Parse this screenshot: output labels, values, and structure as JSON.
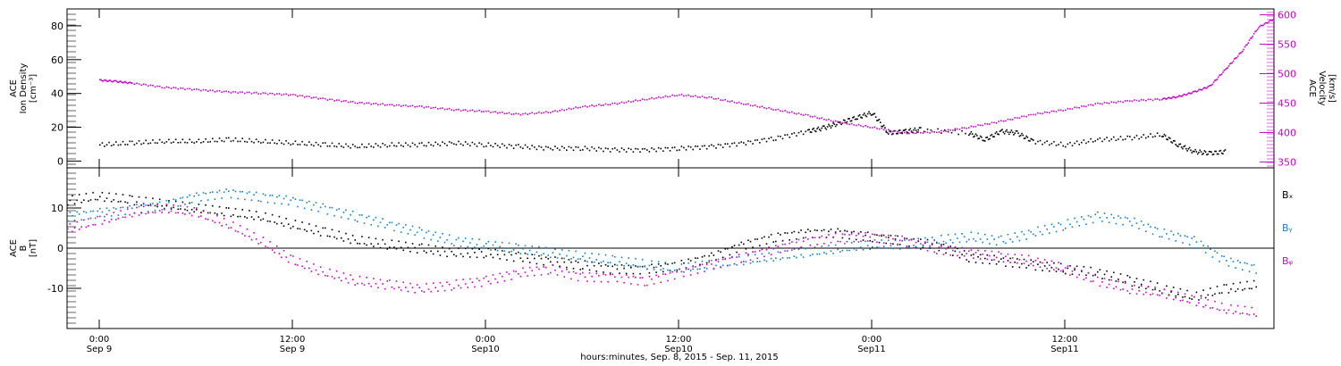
{
  "footer_label": "hours:minutes, Sep. 8, 2015 - Sep. 11, 2015",
  "colors": {
    "black": "#000000",
    "magenta": "#cc00cc",
    "blue": "#0a7fd8",
    "axis_right": "#cc00cc"
  },
  "chart_data": [
    {
      "type": "scatter",
      "ylabel": "ACE\nIon Density\n[cm⁻³]",
      "ylabel_right": "ACE\nVelocity\n[km/s]",
      "ylim": [
        -4,
        90
      ],
      "ylim_right": [
        340,
        610
      ],
      "yticks": [
        0,
        20,
        40,
        60,
        80
      ],
      "yticks_right": [
        350,
        400,
        450,
        500,
        550,
        600
      ],
      "x_hours": [
        -2,
        73
      ],
      "series": [
        {
          "name": "",
          "axis": "left",
          "color": "black",
          "points": [
            [
              0,
              10
            ],
            [
              2,
              11
            ],
            [
              4,
              12
            ],
            [
              6,
              12
            ],
            [
              8,
              13
            ],
            [
              10,
              12
            ],
            [
              12,
              11
            ],
            [
              14,
              10
            ],
            [
              16,
              9
            ],
            [
              18,
              10
            ],
            [
              20,
              10
            ],
            [
              22,
              11
            ],
            [
              24,
              10
            ],
            [
              26,
              9
            ],
            [
              28,
              8
            ],
            [
              30,
              8
            ],
            [
              32,
              7
            ],
            [
              34,
              7
            ],
            [
              36,
              8
            ],
            [
              38,
              9
            ],
            [
              40,
              11
            ],
            [
              42,
              14
            ],
            [
              44,
              18
            ],
            [
              45,
              20
            ],
            [
              46,
              23
            ],
            [
              47,
              26
            ],
            [
              48,
              29
            ],
            [
              49,
              17
            ],
            [
              50,
              18
            ],
            [
              51,
              19
            ],
            [
              54,
              17
            ],
            [
              55,
              13
            ],
            [
              56,
              18
            ],
            [
              57,
              17
            ],
            [
              58,
              12
            ],
            [
              60,
              10
            ],
            [
              62,
              13
            ],
            [
              64,
              14
            ],
            [
              66,
              16
            ],
            [
              67,
              10
            ],
            [
              68,
              6
            ],
            [
              69,
              5
            ],
            [
              70,
              6
            ]
          ]
        },
        {
          "name": "",
          "axis": "right",
          "color": "magenta",
          "points": [
            [
              0,
              490
            ],
            [
              1,
              488
            ],
            [
              2,
              485
            ],
            [
              4,
              478
            ],
            [
              6,
              474
            ],
            [
              8,
              470
            ],
            [
              10,
              468
            ],
            [
              12,
              465
            ],
            [
              14,
              458
            ],
            [
              16,
              452
            ],
            [
              18,
              448
            ],
            [
              20,
              445
            ],
            [
              22,
              440
            ],
            [
              24,
              437
            ],
            [
              26,
              432
            ],
            [
              28,
              436
            ],
            [
              30,
              445
            ],
            [
              32,
              450
            ],
            [
              34,
              458
            ],
            [
              36,
              465
            ],
            [
              38,
              460
            ],
            [
              40,
              450
            ],
            [
              42,
              440
            ],
            [
              44,
              430
            ],
            [
              46,
              418
            ],
            [
              48,
              410
            ],
            [
              50,
              400
            ],
            [
              52,
              402
            ],
            [
              54,
              410
            ],
            [
              56,
              420
            ],
            [
              58,
              432
            ],
            [
              60,
              440
            ],
            [
              62,
              450
            ],
            [
              64,
              455
            ],
            [
              66,
              458
            ],
            [
              67,
              462
            ],
            [
              68,
              470
            ],
            [
              69,
              480
            ],
            [
              70,
              510
            ],
            [
              71,
              540
            ],
            [
              72,
              580
            ],
            [
              73,
              595
            ]
          ]
        }
      ]
    },
    {
      "type": "scatter",
      "ylabel": "ACE\nB\n[nT]",
      "ylim": [
        -20,
        20
      ],
      "yticks": [
        -10,
        0,
        10
      ],
      "x_hours": [
        -2,
        73
      ],
      "series": [
        {
          "name": "Bₓ",
          "color": "black",
          "points": [
            [
              -2,
              12
            ],
            [
              0,
              13
            ],
            [
              2,
              12
            ],
            [
              4,
              11
            ],
            [
              6,
              10
            ],
            [
              8,
              9
            ],
            [
              10,
              8
            ],
            [
              12,
              6
            ],
            [
              14,
              4
            ],
            [
              16,
              2
            ],
            [
              18,
              1
            ],
            [
              20,
              0
            ],
            [
              22,
              -1
            ],
            [
              24,
              -1
            ],
            [
              26,
              -2
            ],
            [
              28,
              -3
            ],
            [
              30,
              -4
            ],
            [
              32,
              -5
            ],
            [
              34,
              -5
            ],
            [
              36,
              -4
            ],
            [
              38,
              -2
            ],
            [
              40,
              1
            ],
            [
              42,
              3
            ],
            [
              44,
              4
            ],
            [
              46,
              4
            ],
            [
              48,
              3
            ],
            [
              50,
              2
            ],
            [
              52,
              1
            ],
            [
              54,
              -2
            ],
            [
              56,
              -3
            ],
            [
              58,
              -4
            ],
            [
              60,
              -5
            ],
            [
              62,
              -6
            ],
            [
              64,
              -8
            ],
            [
              66,
              -10
            ],
            [
              68,
              -12
            ],
            [
              70,
              -10
            ],
            [
              72,
              -9
            ]
          ]
        },
        {
          "name": "Bᵧ",
          "color": "blue",
          "points": [
            [
              -2,
              8
            ],
            [
              0,
              9
            ],
            [
              2,
              10
            ],
            [
              4,
              11
            ],
            [
              6,
              13
            ],
            [
              8,
              14
            ],
            [
              10,
              13
            ],
            [
              12,
              12
            ],
            [
              14,
              10
            ],
            [
              16,
              8
            ],
            [
              18,
              6
            ],
            [
              20,
              4
            ],
            [
              22,
              2
            ],
            [
              24,
              1
            ],
            [
              26,
              0
            ],
            [
              28,
              -1
            ],
            [
              30,
              -2
            ],
            [
              32,
              -3
            ],
            [
              34,
              -4
            ],
            [
              36,
              -5
            ],
            [
              38,
              -4
            ],
            [
              40,
              -3
            ],
            [
              42,
              -2
            ],
            [
              44,
              -1
            ],
            [
              46,
              0
            ],
            [
              48,
              1
            ],
            [
              50,
              1
            ],
            [
              52,
              2
            ],
            [
              54,
              3
            ],
            [
              56,
              2
            ],
            [
              58,
              4
            ],
            [
              60,
              6
            ],
            [
              62,
              8
            ],
            [
              64,
              7
            ],
            [
              66,
              4
            ],
            [
              68,
              2
            ],
            [
              70,
              -3
            ],
            [
              72,
              -5
            ]
          ]
        },
        {
          "name": "Bᵩ",
          "color": "magenta",
          "points": [
            [
              -2,
              5
            ],
            [
              0,
              7
            ],
            [
              2,
              9
            ],
            [
              4,
              10
            ],
            [
              6,
              9
            ],
            [
              8,
              6
            ],
            [
              10,
              2
            ],
            [
              12,
              -3
            ],
            [
              14,
              -6
            ],
            [
              16,
              -8
            ],
            [
              18,
              -9
            ],
            [
              20,
              -10
            ],
            [
              22,
              -9
            ],
            [
              24,
              -8
            ],
            [
              26,
              -6
            ],
            [
              28,
              -5
            ],
            [
              30,
              -7
            ],
            [
              32,
              -7
            ],
            [
              34,
              -8
            ],
            [
              36,
              -6
            ],
            [
              38,
              -4
            ],
            [
              40,
              -2
            ],
            [
              42,
              0
            ],
            [
              44,
              2
            ],
            [
              46,
              3
            ],
            [
              48,
              3
            ],
            [
              50,
              2
            ],
            [
              52,
              0
            ],
            [
              54,
              -1
            ],
            [
              56,
              -2
            ],
            [
              58,
              -3
            ],
            [
              60,
              -5
            ],
            [
              62,
              -8
            ],
            [
              64,
              -10
            ],
            [
              66,
              -11
            ],
            [
              68,
              -13
            ],
            [
              70,
              -15
            ],
            [
              72,
              -16
            ]
          ]
        }
      ]
    }
  ],
  "x_ticks": [
    {
      "hours": 0,
      "time": "0:00",
      "date": "Sep 9"
    },
    {
      "hours": 12,
      "time": "12:00",
      "date": "Sep 9"
    },
    {
      "hours": 24,
      "time": "0:00",
      "date": "Sep10"
    },
    {
      "hours": 36,
      "time": "12:00",
      "date": "Sep10"
    },
    {
      "hours": 48,
      "time": "0:00",
      "date": "Sep11"
    },
    {
      "hours": 60,
      "time": "12:00",
      "date": "Sep11"
    }
  ]
}
